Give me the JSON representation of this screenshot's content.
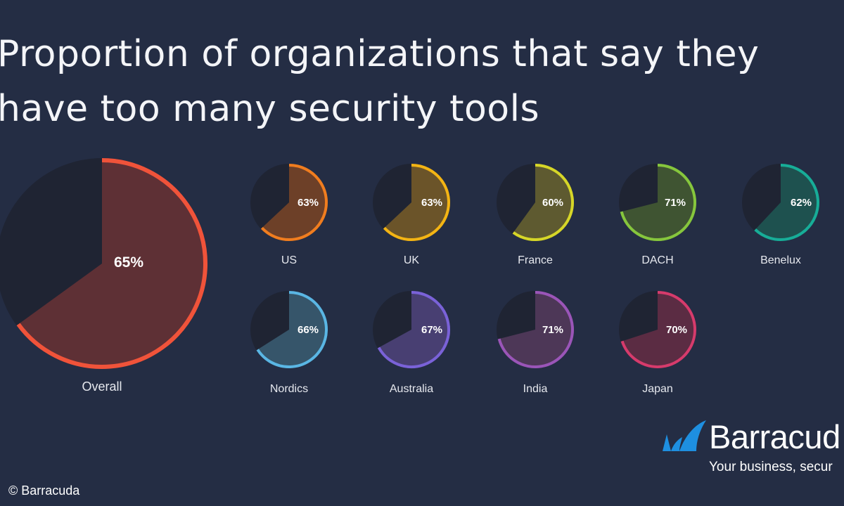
{
  "chart_data": {
    "type": "pie",
    "title": "Proportion of organizations that say they have too many security tools",
    "unit": "%",
    "background_color": "#242d44",
    "remainder_color": "#1f2433",
    "pies": [
      {
        "name": "Overall",
        "value": 65,
        "label": "65%",
        "color": "#f0533a",
        "fill": "#5e3035"
      },
      {
        "name": "US",
        "value": 63,
        "label": "63%",
        "color": "#f07d1f",
        "fill": "#6d4028"
      },
      {
        "name": "UK",
        "value": 63,
        "label": "63%",
        "color": "#f3b414",
        "fill": "#6b5429"
      },
      {
        "name": "France",
        "value": 60,
        "label": "60%",
        "color": "#d6d628",
        "fill": "#5e5a30"
      },
      {
        "name": "DACH",
        "value": 71,
        "label": "71%",
        "color": "#86c63d",
        "fill": "#3f5432"
      },
      {
        "name": "Benelux",
        "value": 62,
        "label": "62%",
        "color": "#17ad98",
        "fill": "#1e514f"
      },
      {
        "name": "Nordics",
        "value": 66,
        "label": "66%",
        "color": "#5ab6e4",
        "fill": "#36556a"
      },
      {
        "name": "Australia",
        "value": 67,
        "label": "67%",
        "color": "#7a62d8",
        "fill": "#483f72"
      },
      {
        "name": "India",
        "value": 71,
        "label": "71%",
        "color": "#9a55b8",
        "fill": "#4d3757"
      },
      {
        "name": "Japan",
        "value": 70,
        "label": "70%",
        "color": "#d63b6c",
        "fill": "#5b2c43"
      }
    ]
  },
  "brand": {
    "name": "Barracud",
    "tagline": "Your business, secur",
    "logo_color": "#1e8fe0",
    "logo_icon": "shark-fin-logo-icon"
  },
  "copyright": "© Barracuda"
}
